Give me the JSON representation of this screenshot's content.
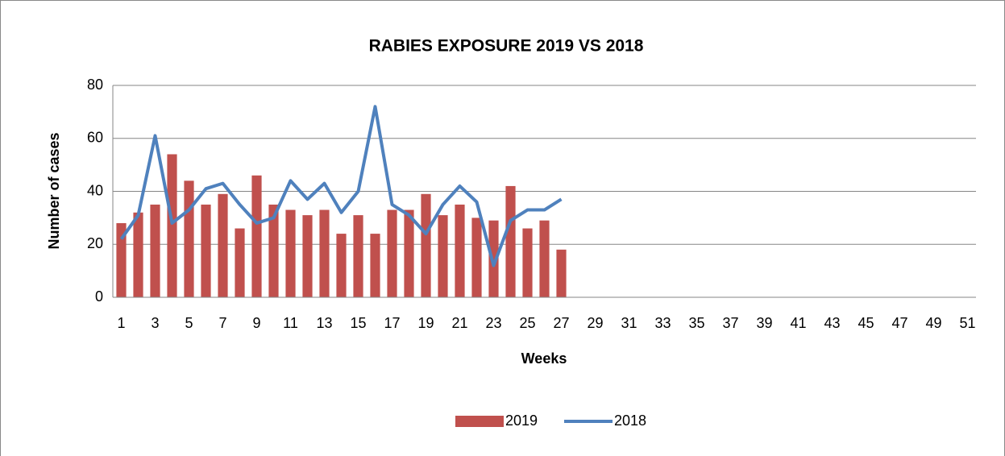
{
  "chart_data": {
    "type": "bar+line",
    "title": "RABIES EXPOSURE 2019 VS 2018",
    "x_label": "Weeks",
    "y_label": "Number of cases",
    "categories": [
      1,
      null,
      3,
      null,
      5,
      null,
      7,
      null,
      9,
      null,
      11,
      null,
      13,
      null,
      15,
      null,
      17,
      null,
      19,
      null,
      21,
      null,
      23,
      null,
      25,
      null,
      27,
      null,
      29,
      null,
      31,
      null,
      33,
      null,
      35,
      null,
      37,
      null,
      39,
      null,
      41,
      null,
      43,
      null,
      45,
      null,
      47,
      null,
      49,
      null,
      51
    ],
    "series": [
      {
        "name": "2019",
        "type": "bar",
        "color": "#c0504d",
        "values": [
          28,
          32,
          35,
          54,
          44,
          35,
          39,
          26,
          46,
          35,
          33,
          31,
          33,
          24,
          31,
          24,
          33,
          33,
          39,
          31,
          35,
          30,
          29,
          42,
          26,
          29,
          18,
          null,
          null,
          null,
          null,
          null,
          null,
          null,
          null,
          null,
          null,
          null,
          null,
          null,
          null,
          null,
          null,
          null,
          null,
          null,
          null,
          null,
          null,
          null,
          null
        ]
      },
      {
        "name": "2018",
        "type": "line",
        "color": "#4f81bd",
        "values": [
          22,
          31,
          61,
          28,
          33,
          41,
          43,
          35,
          28,
          30,
          44,
          37,
          43,
          32,
          40,
          72,
          35,
          31,
          24,
          35,
          42,
          36,
          12,
          29,
          33,
          33,
          37,
          null,
          null,
          null,
          null,
          null,
          null,
          null,
          null,
          null,
          null,
          null,
          null,
          null,
          null,
          null,
          null,
          null,
          null,
          null,
          null,
          null,
          null,
          null,
          null
        ]
      }
    ],
    "ylim": [
      0,
      80
    ],
    "yticks": [
      0,
      20,
      40,
      60,
      80
    ],
    "grid": true,
    "legend": "bottom"
  }
}
